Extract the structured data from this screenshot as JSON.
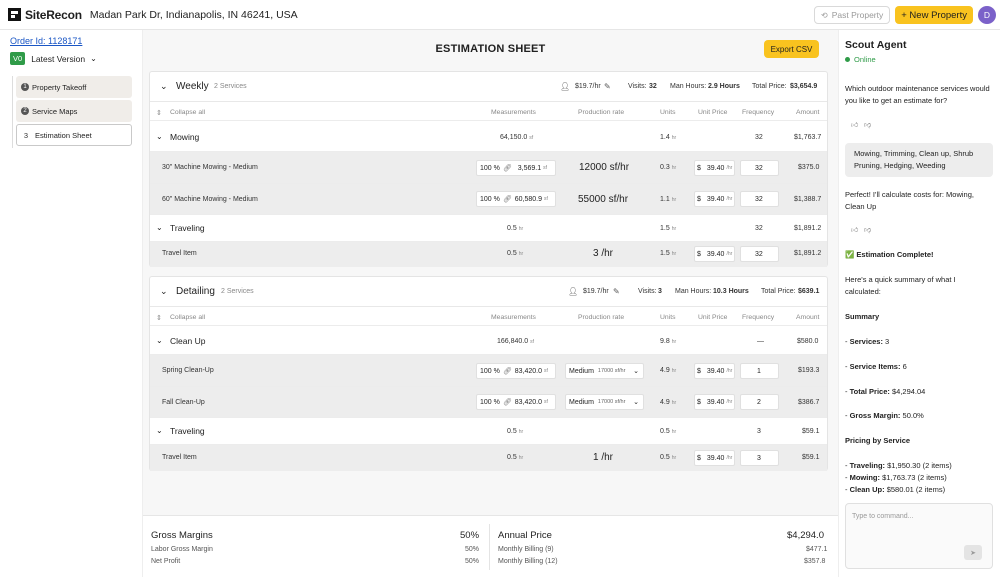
{
  "topbar": {
    "brand": "SiteRecon",
    "address": "Madan Park Dr, Indianapolis, IN 46241, USA",
    "past_property": "Past Property",
    "new_property": "+ New Property",
    "avatar_initial": "D"
  },
  "sidebar": {
    "order_id": "Order Id: 1128171",
    "version_badge": "V0",
    "version_label": "Latest Version",
    "steps": [
      {
        "num": "1",
        "label": "Property Takeoff"
      },
      {
        "num": "2",
        "label": "Service Maps"
      },
      {
        "num": "3",
        "label": "Estimation Sheet"
      }
    ]
  },
  "main": {
    "title": "ESTIMATION SHEET",
    "export_label": "Export CSV",
    "columns": {
      "collapse": "Collapse all",
      "measurements": "Measurements",
      "production_rate": "Production rate",
      "units": "Units",
      "unit_price": "Unit Price",
      "frequency": "Frequency",
      "amount": "Amount"
    },
    "sections": [
      {
        "title": "Weekly",
        "count": "2 Services",
        "labor_rate": "$19.7/hr",
        "visits_label": "Visits:",
        "visits": "32",
        "man_hours_label": "Man Hours:",
        "man_hours": "2.9 Hours",
        "total_label": "Total Price:",
        "total": "$3,654.9",
        "groups": [
          {
            "name": "Mowing",
            "measurement": "64,150.0",
            "m_unit": "sf",
            "units": "1.4",
            "u_unit": "hr",
            "frequency": "32",
            "amount": "$1,763.7",
            "items": [
              {
                "name": "30\" Machine Mowing - Medium",
                "pct": "100 %",
                "measurement": "3,569.1",
                "m_unit": "sf",
                "rate": "12000 sf/hr",
                "units": "0.3",
                "u_unit": "hr",
                "currency": "$",
                "price": "39.40",
                "p_unit": "/hr",
                "frequency": "32",
                "amount": "$375.0"
              },
              {
                "name": "60\" Machine Mowing - Medium",
                "pct": "100 %",
                "measurement": "60,580.9",
                "m_unit": "sf",
                "rate": "55000 sf/hr",
                "units": "1.1",
                "u_unit": "hr",
                "currency": "$",
                "price": "39.40",
                "p_unit": "/hr",
                "frequency": "32",
                "amount": "$1,388.7"
              }
            ]
          },
          {
            "name": "Traveling",
            "measurement": "0.5",
            "m_unit": "hr",
            "units": "1.5",
            "u_unit": "hr",
            "frequency": "32",
            "amount": "$1,891.2",
            "items": [
              {
                "name": "Travel Item",
                "measurement": "0.5",
                "m_unit": "hr",
                "rate": "3 /hr",
                "units": "1.5",
                "u_unit": "hr",
                "currency": "$",
                "price": "39.40",
                "p_unit": "/hr",
                "frequency": "32",
                "amount": "$1,891.2"
              }
            ]
          }
        ]
      },
      {
        "title": "Detailing",
        "count": "2 Services",
        "labor_rate": "$19.7/hr",
        "visits_label": "Visits:",
        "visits": "3",
        "man_hours_label": "Man Hours:",
        "man_hours": "10.3 Hours",
        "total_label": "Total Price:",
        "total": "$639.1",
        "groups": [
          {
            "name": "Clean Up",
            "measurement": "166,840.0",
            "m_unit": "sf",
            "units": "9.8",
            "u_unit": "hr",
            "frequency": "—",
            "amount": "$580.0",
            "items": [
              {
                "name": "Spring Clean-Up",
                "pct": "100 %",
                "measurement": "83,420.0",
                "m_unit": "sf",
                "rate_level": "Medium",
                "rate_value": "17000 sf/hr",
                "units": "4.9",
                "u_unit": "hr",
                "currency": "$",
                "price": "39.40",
                "p_unit": "/hr",
                "frequency": "1",
                "amount": "$193.3"
              },
              {
                "name": "Fall Clean-Up",
                "pct": "100 %",
                "measurement": "83,420.0",
                "m_unit": "sf",
                "rate_level": "Medium",
                "rate_value": "17000 sf/hr",
                "units": "4.9",
                "u_unit": "hr",
                "currency": "$",
                "price": "39.40",
                "p_unit": "/hr",
                "frequency": "2",
                "amount": "$386.7"
              }
            ]
          },
          {
            "name": "Traveling",
            "measurement": "0.5",
            "m_unit": "hr",
            "units": "0.5",
            "u_unit": "hr",
            "frequency": "3",
            "amount": "$59.1",
            "items": [
              {
                "name": "Travel Item",
                "measurement": "0.5",
                "m_unit": "hr",
                "rate": "1 /hr",
                "units": "0.5",
                "u_unit": "hr",
                "currency": "$",
                "price": "39.40",
                "p_unit": "/hr",
                "frequency": "3",
                "amount": "$59.1"
              }
            ]
          }
        ]
      }
    ],
    "summary": {
      "gross_margins_label": "Gross Margins",
      "gross_margins": "50%",
      "labor_gross_margin_label": "Labor Gross Margin",
      "labor_gross_margin": "50%",
      "net_profit_label": "Net Profit",
      "net_profit": "50%",
      "annual_price_label": "Annual Price",
      "annual_price": "$4,294.0",
      "monthly_9_label": "Monthly Billing (9)",
      "monthly_9": "$477.1",
      "monthly_12_label": "Monthly Billing (12)",
      "monthly_12": "$357.8"
    }
  },
  "chat": {
    "title": "Scout Agent",
    "status": "Online",
    "messages": {
      "q1": "Which outdoor maintenance services would you like to get an estimate for?",
      "user": "Mowing, Trimming, Clean up, Shrub Pruning, Hedging, Weeding",
      "a1": "Perfect! I'll calculate costs for: Mowing, Clean Up",
      "complete": "✅ Estimation Complete!",
      "summary_intro": "Here's a quick summary of what I calculated:",
      "summary_heading": "Summary",
      "services_label": "Services:",
      "services_value": "3",
      "items_label": "Service Items:",
      "items_value": "6",
      "total_label": "Total Price:",
      "total_value": "$4,294.04",
      "gm_label": "Gross Margin:",
      "gm_value": "50.0%",
      "pricing_heading": "Pricing by Service",
      "p1_label": "Traveling:",
      "p1_value": "$1,950.30 (2 items)",
      "p2_label": "Mowing:",
      "p2_value": "$1,763.73 (2 items)",
      "p3_label": "Clean Up:",
      "p3_value": "$580.01 (2 items)"
    },
    "input_placeholder": "Type to command..."
  }
}
